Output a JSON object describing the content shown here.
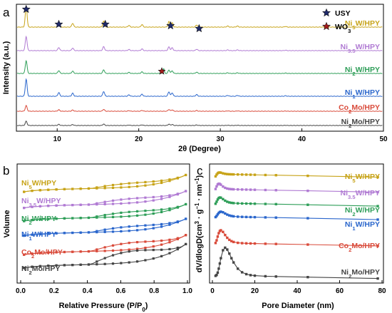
{
  "chart_data": [
    {
      "id": "a",
      "type": "line",
      "panel_label": "a",
      "xlabel": "2θ (Degree)",
      "ylabel": "Intensity (a.u.)",
      "xlim": [
        5,
        50
      ],
      "xticks": [
        10,
        20,
        30,
        40,
        50
      ],
      "legend": [
        {
          "symbol": "star",
          "color": "#1f2a6b",
          "label": "USY"
        },
        {
          "symbol": "star",
          "color": "#a51c1c",
          "label": "WO3",
          "label_main": "WO",
          "label_sub": "3"
        }
      ],
      "usy_peaks_2theta": [
        6.2,
        10.2,
        15.9,
        23.9,
        27.4
      ],
      "wo3_peaks_2theta": [
        23.0
      ],
      "series": [
        {
          "name": "Ni5W/HPY",
          "parts": [
            {
              "t": "Ni"
            },
            {
              "t": "5",
              "sub": true
            },
            {
              "t": "W/HPY"
            }
          ],
          "color": "#c7a318",
          "offset": 5
        },
        {
          "name": "Ni3.5W/HPY",
          "parts": [
            {
              "t": "Ni"
            },
            {
              "t": "3.5",
              "sub": true
            },
            {
              "t": "W/HPY"
            }
          ],
          "color": "#b07ad3",
          "offset": 4
        },
        {
          "name": "Ni2W/HPY",
          "parts": [
            {
              "t": "Ni"
            },
            {
              "t": "2",
              "sub": true
            },
            {
              "t": "W/HPY"
            }
          ],
          "color": "#2e9e58",
          "offset": 3
        },
        {
          "name": "Ni1W/HPY",
          "parts": [
            {
              "t": "Ni"
            },
            {
              "t": "1",
              "sub": true
            },
            {
              "t": "W/HPY"
            }
          ],
          "color": "#2a66cc",
          "offset": 2
        },
        {
          "name": "Co2Mo/HPY",
          "parts": [
            {
              "t": "Co"
            },
            {
              "t": "2",
              "sub": true
            },
            {
              "t": "Mo/HPY"
            }
          ],
          "color": "#d94a3a",
          "offset": 1
        },
        {
          "name": "Ni2Mo/HPY",
          "parts": [
            {
              "t": "Ni"
            },
            {
              "t": "2",
              "sub": true
            },
            {
              "t": "Mo/HPY"
            }
          ],
          "color": "#444444",
          "offset": 0
        }
      ],
      "peaks": [
        [
          6.2,
          1.0
        ],
        [
          10.2,
          0.22
        ],
        [
          11.9,
          0.18
        ],
        [
          15.7,
          0.28
        ],
        [
          18.8,
          0.08
        ],
        [
          20.4,
          0.12
        ],
        [
          23.7,
          0.26
        ],
        [
          24.1,
          0.2
        ],
        [
          27.1,
          0.1
        ],
        [
          30.9,
          0.05
        ],
        [
          32.1,
          0.05
        ],
        [
          38.0,
          0.03
        ]
      ]
    },
    {
      "id": "b",
      "type": "line",
      "panel_label": "b",
      "xlabel": "Relative Pressure (P/P0)",
      "xlabel_parts": [
        {
          "t": "Relative Pressure (P/P"
        },
        {
          "t": "0",
          "sub": true
        },
        {
          "t": ")"
        }
      ],
      "ylabel": "Volume",
      "xlim": [
        0.0,
        1.0
      ],
      "xticks": [
        0.0,
        0.2,
        0.4,
        0.6,
        0.8,
        1.0
      ],
      "xtick_labels": [
        "0.0",
        "0.2",
        "0.4",
        "0.6",
        "0.8",
        "1.0"
      ],
      "series": [
        {
          "name": "Ni5W/HPY",
          "parts": [
            {
              "t": "Ni"
            },
            {
              "t": "5",
              "sub": true
            },
            {
              "t": "W/HPY"
            }
          ],
          "color": "#c7a318",
          "base": 5.6,
          "rise": 0.9,
          "hyst": 0.3
        },
        {
          "name": "Ni3.5W/HPY",
          "parts": [
            {
              "t": "Ni"
            },
            {
              "t": "3.5",
              "sub": true
            },
            {
              "t": "W/HPY"
            }
          ],
          "color": "#b07ad3",
          "base": 4.5,
          "rise": 0.9,
          "hyst": 0.35
        },
        {
          "name": "Ni2W/HPY",
          "parts": [
            {
              "t": "Ni"
            },
            {
              "t": "2",
              "sub": true
            },
            {
              "t": "W/HPY"
            }
          ],
          "color": "#2e9e58",
          "base": 3.6,
          "rise": 0.9,
          "hyst": 0.35
        },
        {
          "name": "Ni1W/HPY",
          "parts": [
            {
              "t": "Ni"
            },
            {
              "t": "1",
              "sub": true
            },
            {
              "t": "W/HPY"
            }
          ],
          "color": "#2a66cc",
          "base": 2.6,
          "rise": 0.9,
          "hyst": 0.35
        },
        {
          "name": "Co2Mo/HPY",
          "parts": [
            {
              "t": "Co"
            },
            {
              "t": "2",
              "sub": true
            },
            {
              "t": "Mo/HPY"
            }
          ],
          "color": "#d94a3a",
          "base": 1.3,
          "rise": 1.1,
          "hyst": 0.55
        },
        {
          "name": "Ni2Mo/HPY",
          "parts": [
            {
              "t": "Ni"
            },
            {
              "t": "2",
              "sub": true
            },
            {
              "t": "Mo/HPY"
            }
          ],
          "color": "#444444",
          "base": 0.4,
          "rise": 1.4,
          "hyst": 0.9
        }
      ]
    },
    {
      "id": "c",
      "type": "line",
      "panel_label": "c",
      "xlabel": "Pore Diameter (nm)",
      "ylabel": "dV/dlogD(cm³ · g⁻¹ · nm⁻¹)",
      "ylabel_parts": [
        {
          "t": "dV/dlogD(cm"
        },
        {
          "t": "3",
          "sup": true
        },
        {
          "t": " · g"
        },
        {
          "t": "−1",
          "sup": true
        },
        {
          "t": " · nm"
        },
        {
          "t": "−1",
          "sup": true
        },
        {
          "t": ")"
        }
      ],
      "xlim": [
        0,
        80
      ],
      "xticks": [
        0,
        20,
        40,
        60,
        80
      ],
      "series": [
        {
          "name": "Ni5W/HPY",
          "parts": [
            {
              "t": "Ni"
            },
            {
              "t": "5",
              "sub": true
            },
            {
              "t": "W/HPY"
            }
          ],
          "color": "#c7a318",
          "base": 10.0,
          "peak": 0.3,
          "peak_at": 3,
          "tail": -0.6
        },
        {
          "name": "Ni3.5W/HPY",
          "parts": [
            {
              "t": "Ni"
            },
            {
              "t": "3.5",
              "sub": true
            },
            {
              "t": "W/HPY"
            }
          ],
          "color": "#b07ad3",
          "base": 8.55,
          "peak": 0.6,
          "peak_at": 3,
          "tail": -0.3
        },
        {
          "name": "Ni2W/HPY",
          "parts": [
            {
              "t": "Ni"
            },
            {
              "t": "2",
              "sub": true
            },
            {
              "t": "W/HPY"
            }
          ],
          "color": "#2e9e58",
          "base": 7.2,
          "peak": 0.6,
          "peak_at": 3.5,
          "tail": -0.3
        },
        {
          "name": "Ni1W/HPY",
          "parts": [
            {
              "t": "Ni"
            },
            {
              "t": "1",
              "sub": true
            },
            {
              "t": "W/HPY"
            }
          ],
          "color": "#2a66cc",
          "base": 5.9,
          "peak": 0.5,
          "peak_at": 4,
          "tail": -0.2
        },
        {
          "name": "Co2Mo/HPY",
          "parts": [
            {
              "t": "Co"
            },
            {
              "t": "2",
              "sub": true
            },
            {
              "t": "Mo/HPY"
            }
          ],
          "color": "#d94a3a",
          "base": 3.35,
          "peak": 1.25,
          "peak_at": 4,
          "tail": -0.5
        },
        {
          "name": "Ni2Mo/HPY",
          "parts": [
            {
              "t": "Ni"
            },
            {
              "t": "2",
              "sub": true
            },
            {
              "t": "Mo/HPY"
            }
          ],
          "color": "#444444",
          "base": 0.2,
          "peak": 2.7,
          "peak_at": 6,
          "tail": -0.3
        }
      ],
      "sample_x": [
        1.5,
        2,
        2.5,
        3,
        3.5,
        4,
        5,
        6,
        7,
        8,
        9,
        10,
        12,
        14,
        16,
        18,
        20,
        25,
        30,
        45,
        78
      ]
    }
  ]
}
